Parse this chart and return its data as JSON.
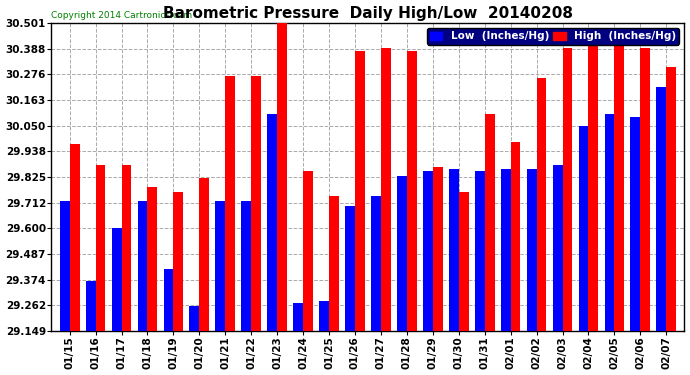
{
  "title": "Barometric Pressure  Daily High/Low  20140208",
  "copyright": "Copyright 2014 Cartronics.com",
  "legend_low": "Low  (Inches/Hg)",
  "legend_high": "High  (Inches/Hg)",
  "dates": [
    "01/15",
    "01/16",
    "01/17",
    "01/18",
    "01/19",
    "01/20",
    "01/21",
    "01/22",
    "01/23",
    "01/24",
    "01/25",
    "01/26",
    "01/27",
    "01/28",
    "01/29",
    "01/30",
    "01/31",
    "02/01",
    "02/02",
    "02/03",
    "02/04",
    "02/05",
    "02/06",
    "02/07"
  ],
  "low": [
    29.72,
    29.37,
    29.6,
    29.72,
    29.42,
    29.26,
    29.72,
    29.72,
    30.1,
    29.27,
    29.28,
    29.7,
    29.74,
    29.83,
    29.85,
    29.86,
    29.85,
    29.86,
    29.86,
    29.88,
    30.05,
    30.1,
    30.09,
    30.22
  ],
  "high": [
    29.97,
    29.88,
    29.88,
    29.78,
    29.76,
    29.82,
    30.27,
    30.27,
    30.5,
    29.85,
    29.74,
    30.38,
    30.39,
    30.38,
    29.87,
    29.76,
    30.1,
    29.98,
    30.26,
    30.39,
    30.4,
    30.4,
    30.39,
    30.31
  ],
  "ylim_min": 29.149,
  "ylim_max": 30.501,
  "yticks": [
    29.149,
    29.262,
    29.374,
    29.487,
    29.6,
    29.712,
    29.825,
    29.938,
    30.05,
    30.163,
    30.276,
    30.388,
    30.501
  ],
  "bar_width": 0.38,
  "low_color": "#0000ff",
  "high_color": "#ff0000",
  "bg_color": "#ffffff",
  "grid_color": "#aaaaaa",
  "title_fontsize": 11,
  "tick_fontsize": 7.5,
  "legend_fontsize": 7.5,
  "legend_bg": "#000080"
}
